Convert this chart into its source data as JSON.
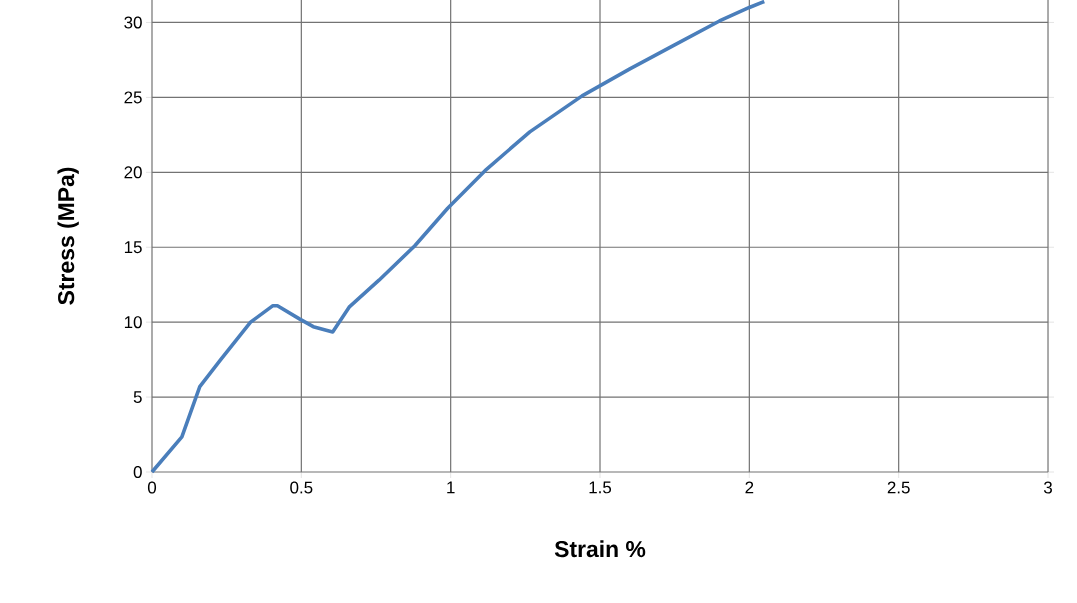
{
  "chart_data": {
    "type": "line",
    "xlabel": "Strain %",
    "ylabel": "Stress (MPa)",
    "xlim": [
      0,
      3
    ],
    "ylim": [
      0,
      31.5
    ],
    "xticks": [
      0,
      0.5,
      1,
      1.5,
      2,
      2.5,
      3
    ],
    "yticks": [
      0,
      5,
      10,
      15,
      20,
      25,
      30
    ],
    "grid": true,
    "marker": "none",
    "line_style": "solid",
    "series": [
      {
        "color": "#4a7ebb",
        "x": [
          0,
          0.1,
          0.16,
          0.23,
          0.33,
          0.405,
          0.42,
          0.495,
          0.54,
          0.605,
          0.66,
          0.76,
          0.88,
          0.99,
          1.12,
          1.265,
          1.44,
          1.6,
          1.75,
          1.9,
          2.0,
          2.05
        ],
        "values": [
          0,
          2.35,
          5.7,
          7.5,
          10.0,
          11.1,
          11.1,
          10.2,
          9.7,
          9.35,
          11.0,
          12.8,
          15.1,
          17.6,
          20.2,
          22.7,
          25.1,
          26.9,
          28.5,
          30.1,
          31.0,
          31.4
        ]
      }
    ]
  }
}
